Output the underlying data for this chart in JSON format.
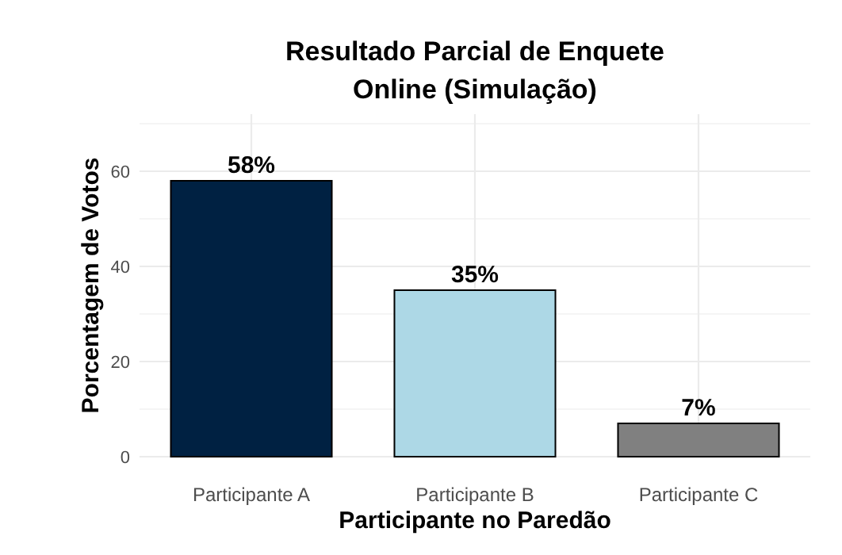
{
  "chart_data": {
    "type": "bar",
    "title": "Resultado Parcial de Enquete Online (Simulação)",
    "xlabel": "Participante no Paredão",
    "ylabel": "Porcentagem de Votos",
    "categories": [
      "Participante A",
      "Participante B",
      "Participante C"
    ],
    "values": [
      58,
      35,
      7
    ],
    "colors": [
      "#002142",
      "#add8e6",
      "#808080"
    ],
    "value_labels": [
      "58%",
      "35%",
      "7%"
    ],
    "ylim": [
      0,
      72
    ],
    "yticks": [
      0,
      {
        "value": 10,
        "label": null
      },
      20,
      {
        "value": 30,
        "label": null
      },
      40,
      {
        "value": 50,
        "label": null
      },
      60,
      {
        "value": 70,
        "label": null
      }
    ],
    "grid": true
  }
}
